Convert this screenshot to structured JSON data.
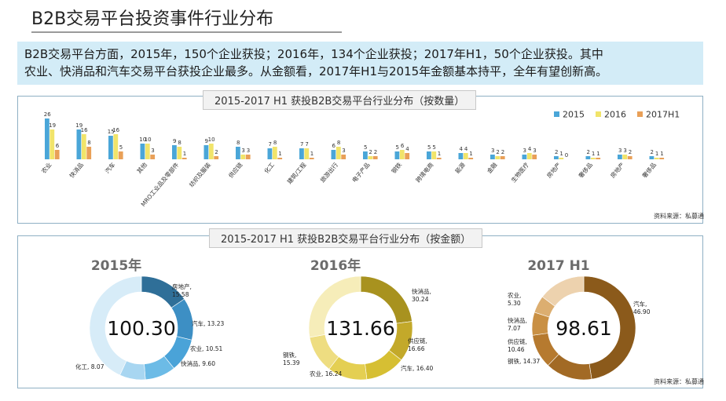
{
  "title": "B2B交易平台投资事件行业分布",
  "summary": {
    "line1": "B2B交易平台方面，2015年，150个企业获投；2016年，134个企业获投；2017年H1，50个企业获投。其中",
    "line2": "农业、快消品和汽车交易平台获投企业最多。从金额看，2017年H1与2015年金额基本持平，全年有望创新高。"
  },
  "panel1": {
    "title": "2015-2017 H1 获投B2B交易平台行业分布（按数量）",
    "source": "资料来源：私募通"
  },
  "panel2": {
    "title": "2015-2017 H1 获投B2B交易平台行业分布（按金额）",
    "source": "资料来源：私募通"
  },
  "colors": {
    "2015": "#4aa6d8",
    "2016": "#f1e46a",
    "2017H1": "#e9a058",
    "header_bg": "#d3ecf7"
  },
  "chart_data": [
    {
      "type": "bar",
      "title": "2015-2017 H1 获投B2B交易平台行业分布（按数量）",
      "categories": [
        "农业",
        "快消品",
        "汽车",
        "其他",
        "MRO工业品及零部件",
        "纺织及服装",
        "供应链",
        "化工",
        "建筑/工程",
        "旅游出行",
        "电子产品",
        "钢铁",
        "跨境电商",
        "能源",
        "金融",
        "生物医疗",
        "房地产",
        "奢侈品",
        "房地产",
        "奢侈品"
      ],
      "series": [
        {
          "name": "2015",
          "values": [
            26,
            19,
            15,
            10,
            9,
            9,
            8,
            7,
            7,
            6,
            5,
            5,
            5,
            4,
            3,
            3,
            2,
            2,
            3,
            2
          ]
        },
        {
          "name": "2016",
          "values": [
            19,
            16,
            16,
            10,
            8,
            10,
            3,
            8,
            7,
            8,
            2,
            6,
            5,
            4,
            2,
            4,
            1,
            1,
            3,
            1
          ]
        },
        {
          "name": "2017H1",
          "values": [
            6,
            8,
            5,
            3,
            1,
            2,
            3,
            1,
            1,
            3,
            2,
            4,
            1,
            1,
            2,
            3,
            0,
            1,
            2,
            1
          ]
        }
      ],
      "legend": "top-right"
    },
    {
      "type": "pie",
      "title": "2015年",
      "total": "100.30",
      "labels": [
        "房地产",
        "汽车",
        "农业",
        "快消品",
        "化工"
      ],
      "values": [
        15.58,
        13.23,
        10.51,
        9.6,
        8.07
      ],
      "label_texts": [
        "房地产,\n15.58",
        "汽车, 13.23",
        "农业, 10.51",
        "快消品, 9.60",
        "化工, 8.07"
      ]
    },
    {
      "type": "pie",
      "title": "2016年",
      "total": "131.66",
      "labels": [
        "快消品",
        "供应链",
        "汽车",
        "农业",
        "钢铁"
      ],
      "values": [
        30.24,
        16.66,
        16.4,
        16.24,
        15.39
      ],
      "label_texts": [
        "快消品,\n30.24",
        "供应链,\n16.66",
        "汽车, 16.40",
        "农业, 16.24",
        "钢铁,\n15.39"
      ]
    },
    {
      "type": "pie",
      "title": "2017 H1",
      "total": "98.61",
      "labels": [
        "汽车",
        "钢铁",
        "供应链",
        "快消品",
        "农业"
      ],
      "values": [
        46.9,
        14.37,
        10.46,
        7.07,
        5.3
      ],
      "label_texts": [
        "汽车,\n46.90",
        "钢铁, 14.37",
        "供应链,\n10.46",
        "快消品,\n7.07",
        "农业,\n5.30"
      ]
    }
  ]
}
